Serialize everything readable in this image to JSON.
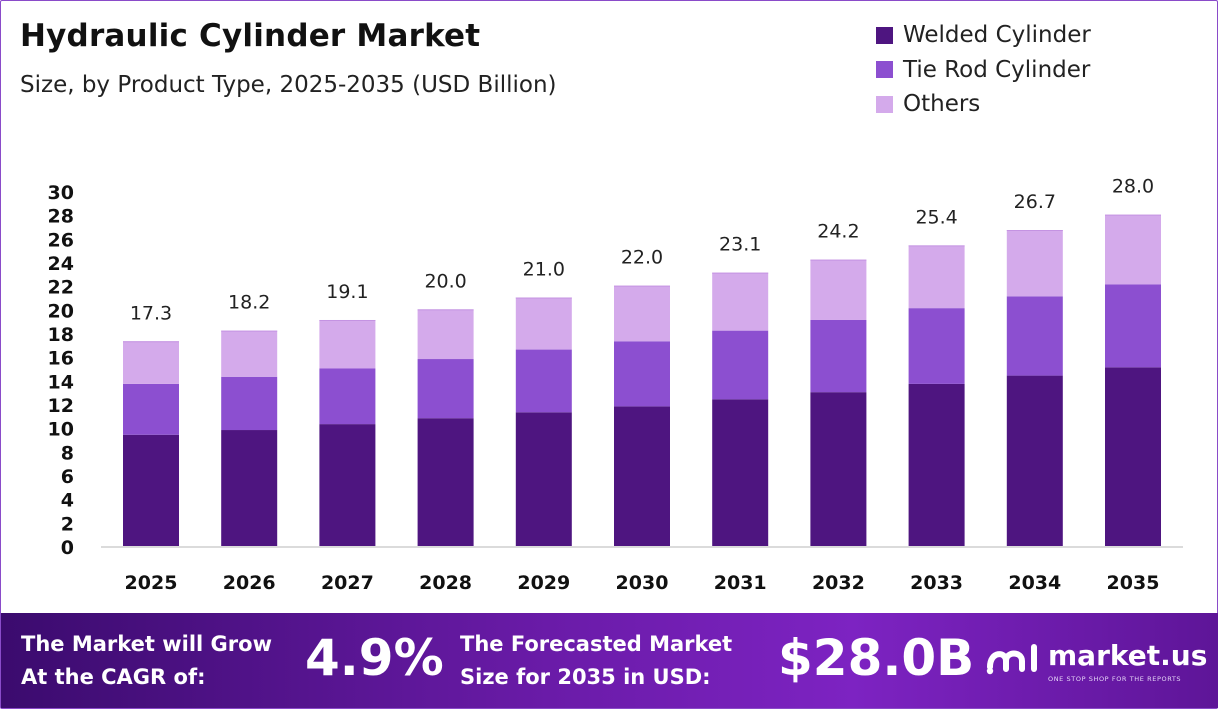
{
  "colors": {
    "welded": "#4e1580",
    "tie_rod": "#8c4fd0",
    "others": "#d4aaeb"
  },
  "chart_data": {
    "type": "bar",
    "stacked": true,
    "title": "Hydraulic Cylinder Market",
    "subtitle": "Size, by Product Type, 2025-2035 (USD Billion)",
    "categories": [
      "2025",
      "2026",
      "2027",
      "2028",
      "2029",
      "2030",
      "2031",
      "2032",
      "2033",
      "2034",
      "2035"
    ],
    "series": [
      {
        "name": "Welded Cylinder",
        "values": [
          9.4,
          9.8,
          10.3,
          10.8,
          11.3,
          11.8,
          12.4,
          13.0,
          13.7,
          14.4,
          15.1
        ]
      },
      {
        "name": "Tie Rod Cylinder",
        "values": [
          4.3,
          4.5,
          4.7,
          5.0,
          5.3,
          5.5,
          5.8,
          6.1,
          6.4,
          6.7,
          7.0
        ]
      },
      {
        "name": "Others",
        "values": [
          3.6,
          3.9,
          4.1,
          4.2,
          4.4,
          4.7,
          4.9,
          5.1,
          5.3,
          5.6,
          5.9
        ]
      }
    ],
    "totals": [
      "17.3",
      "18.2",
      "19.1",
      "20.0",
      "21.0",
      "22.0",
      "23.1",
      "24.2",
      "25.4",
      "26.7",
      "28.0"
    ],
    "yticks": [
      0,
      2,
      4,
      6,
      8,
      10,
      12,
      14,
      16,
      18,
      20,
      22,
      24,
      26,
      28,
      30
    ],
    "ylim": [
      0,
      30
    ],
    "grid": false,
    "legend_position": "top-right"
  },
  "footer": {
    "cagr_line1": "The Market will Grow",
    "cagr_line2": "At the CAGR of:",
    "cagr_value": "4.9%",
    "size_line1": "The Forecasted Market",
    "size_line2": "Size for 2035 in USD:",
    "size_value": "$28.0B",
    "brand_name": "market.us",
    "brand_tagline": "ONE STOP SHOP FOR THE REPORTS"
  }
}
